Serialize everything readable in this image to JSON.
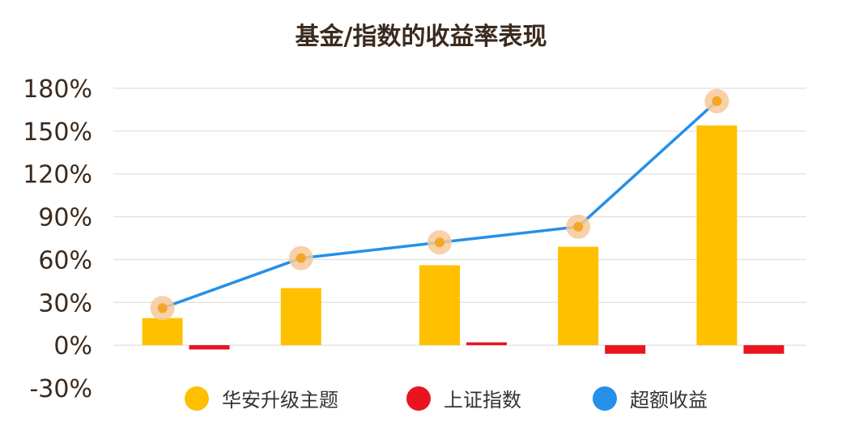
{
  "title": "基金/指数的收益率表现",
  "chart_data": {
    "type": "bar",
    "categories": [
      "",
      "",
      "",
      "",
      ""
    ],
    "y_ticks": [
      "-30%",
      "0%",
      "30%",
      "60%",
      "90%",
      "120%",
      "150%",
      "180%"
    ],
    "ylim": [
      -30,
      180
    ],
    "grid": true,
    "legend_position": "bottom",
    "series": [
      {
        "name": "华安升级主题",
        "type": "bar",
        "color": "#FFC000",
        "values": [
          19,
          40,
          56,
          69,
          154
        ]
      },
      {
        "name": "上证指数",
        "type": "bar",
        "color": "#E8141F",
        "values": [
          -3,
          0,
          2,
          -6,
          -6
        ]
      },
      {
        "name": "超额收益",
        "type": "line",
        "color": "#2590E8",
        "values": [
          26,
          61,
          72,
          83,
          171
        ]
      }
    ]
  }
}
